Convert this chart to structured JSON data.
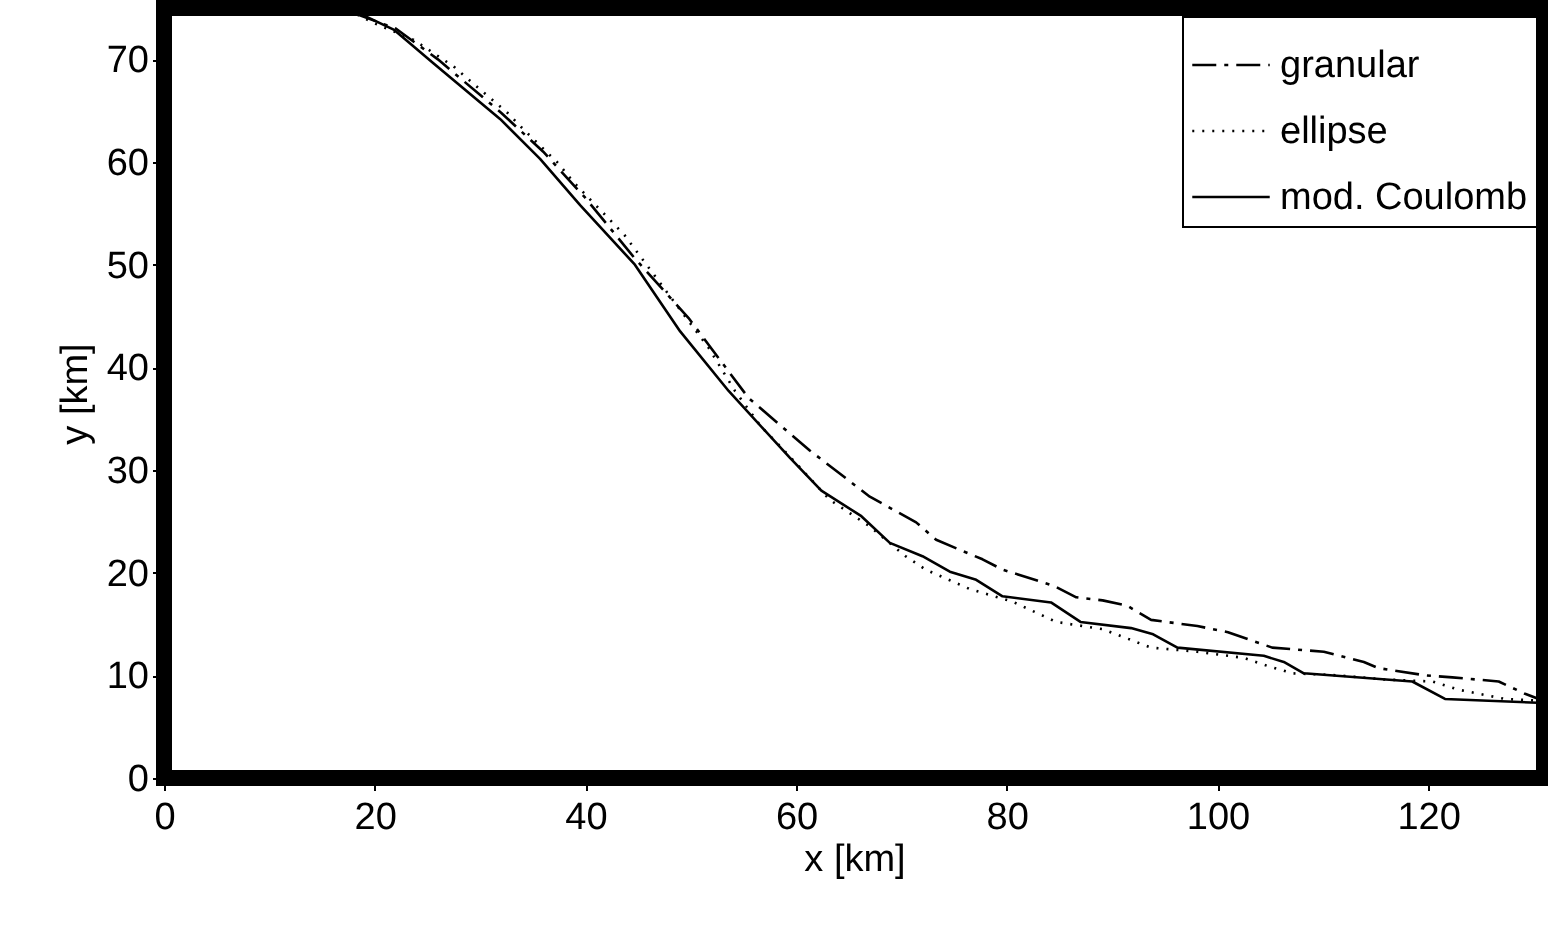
{
  "chart_data": {
    "type": "line",
    "xlabel": "x [km]",
    "ylabel": "y [km]",
    "xlim": [
      0,
      131
    ],
    "ylim": [
      0,
      75
    ],
    "xticks": [
      0,
      20,
      40,
      60,
      80,
      100,
      120
    ],
    "yticks": [
      0,
      10,
      20,
      30,
      40,
      50,
      60,
      70
    ],
    "grid": false,
    "legend": "top right",
    "marker": "none",
    "series": [
      {
        "name": "granular",
        "color": "#000000",
        "line_style": "dashed",
        "x": [
          18,
          22,
          26,
          32,
          36,
          40,
          44.7,
          49.8,
          55.5,
          61.3,
          67,
          71.4,
          73.3,
          77.7,
          79.6,
          84.5,
          86.6,
          89.1,
          91.4,
          93.7,
          98.1,
          101,
          105.2,
          110.1,
          113.9,
          115.3,
          119.7,
          122.3,
          126.7,
          129.2,
          131
        ],
        "values": [
          74.5,
          73,
          70,
          64.8,
          61,
          56.5,
          50.6,
          44.8,
          37,
          31.9,
          27.4,
          24.9,
          23.2,
          21.3,
          20.3,
          18.7,
          17.6,
          17.3,
          16.8,
          15.4,
          14.8,
          14.2,
          12.7,
          12.3,
          11.3,
          10.7,
          10,
          9.8,
          9.4,
          8.2,
          7.5
        ]
      },
      {
        "name": "ellipse",
        "color": "#000000",
        "line_style": "dotted",
        "x": [
          17.5,
          20,
          23.7,
          27.5,
          29.4,
          32.6,
          34.2,
          37.4,
          38.9,
          42.2,
          43.7,
          47.9,
          51.7,
          54.2,
          56.7,
          58.6,
          63.2,
          67,
          70.4,
          72.3,
          76.5,
          80.5,
          84.7,
          89.1,
          93.7,
          98.1,
          102.5,
          104.8,
          107.1,
          111.5,
          115.8,
          120.4,
          122.9,
          127.3,
          131
        ],
        "values": [
          74.8,
          73.5,
          71.9,
          69.3,
          67.6,
          64.8,
          63.1,
          59.9,
          58,
          54.5,
          52.9,
          47.1,
          41.9,
          37.7,
          34.2,
          32.2,
          27.1,
          24.5,
          21.6,
          20.3,
          18.4,
          17.2,
          15.2,
          14.5,
          12.7,
          12.3,
          11.7,
          10.9,
          10.2,
          10,
          9.6,
          9.4,
          8.6,
          7.7,
          7.5
        ]
      },
      {
        "name": "mod. Coulomb",
        "color": "#000000",
        "line_style": "solid",
        "x": [
          17.9,
          21.8,
          25.6,
          31.9,
          35.7,
          39.5,
          44.7,
          49,
          53.6,
          59.4,
          62.4,
          66.2,
          68.9,
          72,
          74.6,
          77.1,
          79.6,
          84.2,
          87,
          91.8,
          93.9,
          96.2,
          104.4,
          106.3,
          108.2,
          118.5,
          121.6,
          131
        ],
        "values": [
          74.8,
          72.9,
          69.6,
          64.2,
          60.3,
          55.8,
          50,
          43.5,
          37.7,
          31.2,
          28,
          25.5,
          22.9,
          21.6,
          20.1,
          19.3,
          17.7,
          17.1,
          15.2,
          14.6,
          14,
          12.7,
          11.9,
          11.3,
          10.2,
          9.4,
          7.7,
          7.3
        ]
      }
    ]
  }
}
